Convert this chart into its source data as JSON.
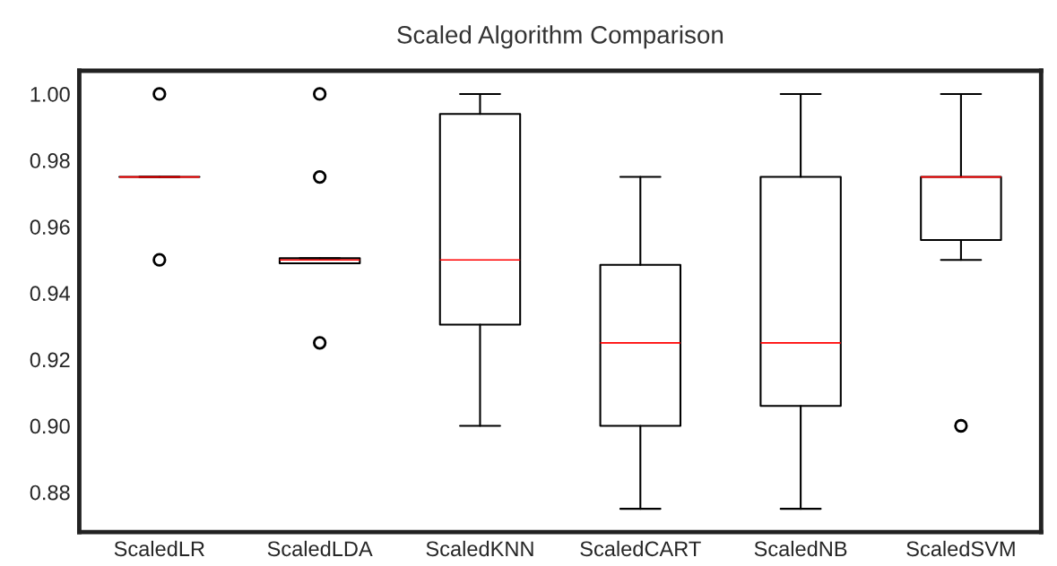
{
  "chart_data": {
    "type": "box",
    "title": "Scaled Algorithm Comparison",
    "categories": [
      "ScaledLR",
      "ScaledLDA",
      "ScaledKNN",
      "ScaledCART",
      "ScaledNB",
      "ScaledSVM"
    ],
    "boxes": [
      {
        "low": 0.975,
        "q1": 0.975,
        "median": 0.975,
        "q3": 0.975,
        "high": 0.975,
        "outliers": [
          1.0,
          0.95
        ]
      },
      {
        "low": 0.949,
        "q1": 0.949,
        "median": 0.95,
        "q3": 0.9505,
        "high": 0.9505,
        "outliers": [
          1.0,
          0.975,
          0.925
        ]
      },
      {
        "low": 0.9,
        "q1": 0.9305,
        "median": 0.95,
        "q3": 0.994,
        "high": 1.0
      },
      {
        "low": 0.875,
        "q1": 0.9,
        "median": 0.925,
        "q3": 0.9485,
        "high": 0.975
      },
      {
        "low": 0.875,
        "q1": 0.906,
        "median": 0.925,
        "q3": 0.975,
        "high": 1.0
      },
      {
        "low": 0.95,
        "q1": 0.956,
        "median": 0.975,
        "q3": 0.975,
        "high": 1.0,
        "outliers": [
          0.9
        ]
      }
    ],
    "color": "#000000",
    "ylim": [
      0.868,
      1.007
    ],
    "yticks": [
      0.88,
      {
        "value": 0.9,
        "label": "0.90"
      },
      0.92,
      0.94,
      0.96,
      0.98,
      {
        "value": 1.0,
        "label": "1.00"
      }
    ],
    "grid": false
  }
}
